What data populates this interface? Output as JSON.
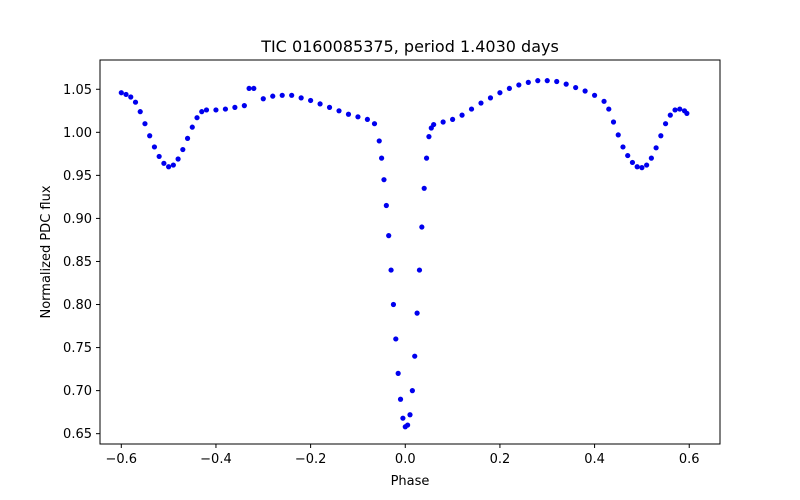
{
  "chart_data": {
    "type": "scatter",
    "title": "TIC 0160085375, period 1.4030 days",
    "xlabel": "Phase",
    "ylabel": "Normalized PDC flux",
    "xlim": [
      -0.645,
      0.665
    ],
    "ylim": [
      0.638,
      1.084
    ],
    "xticks": [
      -0.6,
      -0.4,
      -0.2,
      0.0,
      0.2,
      0.4,
      0.6
    ],
    "xtick_labels": [
      "−0.6",
      "−0.4",
      "−0.2",
      "0.0",
      "0.2",
      "0.4",
      "0.6"
    ],
    "yticks": [
      0.65,
      0.7,
      0.75,
      0.8,
      0.85,
      0.9,
      0.95,
      1.0,
      1.05
    ],
    "ytick_labels": [
      "0.65",
      "0.70",
      "0.75",
      "0.80",
      "0.85",
      "0.90",
      "0.95",
      "1.00",
      "1.05"
    ],
    "grid": false,
    "marker_color": "#0000ee",
    "series": [
      {
        "points": [
          [
            -0.6,
            1.046
          ],
          [
            -0.59,
            1.044
          ],
          [
            -0.58,
            1.041
          ],
          [
            -0.57,
            1.035
          ],
          [
            -0.56,
            1.024
          ],
          [
            -0.55,
            1.01
          ],
          [
            -0.54,
            0.996
          ],
          [
            -0.53,
            0.983
          ],
          [
            -0.52,
            0.972
          ],
          [
            -0.51,
            0.964
          ],
          [
            -0.5,
            0.96
          ],
          [
            -0.49,
            0.962
          ],
          [
            -0.48,
            0.969
          ],
          [
            -0.47,
            0.98
          ],
          [
            -0.46,
            0.993
          ],
          [
            -0.45,
            1.006
          ],
          [
            -0.44,
            1.017
          ],
          [
            -0.43,
            1.024
          ],
          [
            -0.42,
            1.026
          ],
          [
            -0.4,
            1.026
          ],
          [
            -0.38,
            1.027
          ],
          [
            -0.36,
            1.029
          ],
          [
            -0.34,
            1.031
          ],
          [
            -0.33,
            1.051
          ],
          [
            -0.32,
            1.051
          ],
          [
            -0.3,
            1.039
          ],
          [
            -0.28,
            1.042
          ],
          [
            -0.26,
            1.043
          ],
          [
            -0.24,
            1.043
          ],
          [
            -0.22,
            1.04
          ],
          [
            -0.2,
            1.037
          ],
          [
            -0.18,
            1.033
          ],
          [
            -0.16,
            1.029
          ],
          [
            -0.14,
            1.025
          ],
          [
            -0.12,
            1.021
          ],
          [
            -0.1,
            1.018
          ],
          [
            -0.08,
            1.015
          ],
          [
            -0.065,
            1.01
          ],
          [
            -0.055,
            0.99
          ],
          [
            -0.05,
            0.97
          ],
          [
            -0.045,
            0.945
          ],
          [
            -0.04,
            0.915
          ],
          [
            -0.035,
            0.88
          ],
          [
            -0.03,
            0.84
          ],
          [
            -0.025,
            0.8
          ],
          [
            -0.02,
            0.76
          ],
          [
            -0.015,
            0.72
          ],
          [
            -0.01,
            0.69
          ],
          [
            -0.005,
            0.668
          ],
          [
            0.0,
            0.658
          ],
          [
            0.005,
            0.66
          ],
          [
            0.01,
            0.672
          ],
          [
            0.015,
            0.7
          ],
          [
            0.02,
            0.74
          ],
          [
            0.025,
            0.79
          ],
          [
            0.03,
            0.84
          ],
          [
            0.035,
            0.89
          ],
          [
            0.04,
            0.935
          ],
          [
            0.045,
            0.97
          ],
          [
            0.05,
            0.995
          ],
          [
            0.055,
            1.005
          ],
          [
            0.06,
            1.009
          ],
          [
            0.08,
            1.012
          ],
          [
            0.1,
            1.015
          ],
          [
            0.12,
            1.02
          ],
          [
            0.14,
            1.027
          ],
          [
            0.16,
            1.034
          ],
          [
            0.18,
            1.04
          ],
          [
            0.2,
            1.046
          ],
          [
            0.22,
            1.051
          ],
          [
            0.24,
            1.055
          ],
          [
            0.26,
            1.058
          ],
          [
            0.28,
            1.06
          ],
          [
            0.3,
            1.06
          ],
          [
            0.32,
            1.059
          ],
          [
            0.34,
            1.056
          ],
          [
            0.36,
            1.052
          ],
          [
            0.38,
            1.048
          ],
          [
            0.4,
            1.043
          ],
          [
            0.42,
            1.036
          ],
          [
            0.43,
            1.027
          ],
          [
            0.44,
            1.012
          ],
          [
            0.45,
            0.997
          ],
          [
            0.46,
            0.983
          ],
          [
            0.47,
            0.973
          ],
          [
            0.48,
            0.965
          ],
          [
            0.49,
            0.96
          ],
          [
            0.5,
            0.959
          ],
          [
            0.51,
            0.962
          ],
          [
            0.52,
            0.97
          ],
          [
            0.53,
            0.982
          ],
          [
            0.54,
            0.996
          ],
          [
            0.55,
            1.01
          ],
          [
            0.56,
            1.02
          ],
          [
            0.57,
            1.026
          ],
          [
            0.58,
            1.027
          ],
          [
            0.59,
            1.025
          ],
          [
            0.595,
            1.022
          ]
        ]
      }
    ]
  }
}
